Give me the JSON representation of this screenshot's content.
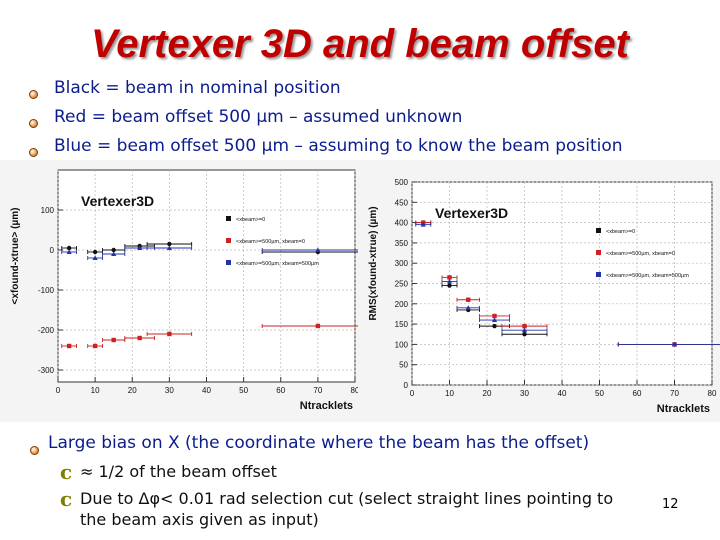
{
  "slide": {
    "title": "Vertexer 3D and beam offset",
    "bullets": [
      "Black = beam in nominal position",
      "Red = beam offset 500 µm – assumed unknown",
      "Blue = beam offset 500 µm – assuming to know the beam position"
    ],
    "conclusion": "Large bias on X (the coordinate where the beam has the offset)",
    "sub_bullets": [
      "≈ 1/2 of the beam offset",
      "Due to Δφ< 0.01 rad selection cut (select straight lines pointing to",
      "the beam axis given as input)"
    ],
    "page_number": "12",
    "colors": {
      "title": "#c00000",
      "bullet_text": "#0b1d8c",
      "black": "#111111",
      "red": "#cc2222",
      "blue": "#2233aa"
    }
  },
  "chart_data": [
    {
      "type": "scatter",
      "title": "Vertexer3D",
      "ylabel": "<xfound-xtrue> (µm)",
      "xlabel": "Ntracklets",
      "xlim": [
        0,
        80
      ],
      "ylim": [
        -330,
        200
      ],
      "x_ticks": [
        "0",
        "10",
        "20",
        "30",
        "40",
        "50",
        "60",
        "70",
        "80"
      ],
      "y_ticks": [
        "-300",
        "-200",
        "-100",
        "0",
        "100"
      ],
      "legend": [
        "<xbeam>=0",
        "<xbeam>=500µm, xbeam=0",
        "<xbeam>=500µm, xbeam=500µm"
      ],
      "series": [
        {
          "name": "<xbeam>=0",
          "color": "#111111",
          "x": [
            3,
            10,
            15,
            22,
            30,
            70
          ],
          "xerr": [
            2,
            2,
            3,
            4,
            6,
            15
          ],
          "y": [
            5,
            -5,
            0,
            10,
            15,
            -5
          ]
        },
        {
          "name": "<xbeam>=500µm, xbeam=0",
          "color": "#cc2222",
          "x": [
            3,
            10,
            15,
            22,
            30,
            70
          ],
          "xerr": [
            2,
            2,
            3,
            4,
            6,
            15
          ],
          "y": [
            -240,
            -240,
            -225,
            -220,
            -210,
            -190
          ]
        },
        {
          "name": "<xbeam>=500µm, xbeam=500µm",
          "color": "#2233aa",
          "x": [
            3,
            10,
            15,
            22,
            30,
            70
          ],
          "xerr": [
            2,
            2,
            3,
            4,
            6,
            15
          ],
          "y": [
            -5,
            -20,
            -10,
            5,
            5,
            0
          ]
        }
      ]
    },
    {
      "type": "scatter",
      "title": "Vertexer3D",
      "ylabel": "RMS(xfound-xtrue) (µm)",
      "xlabel": "Ntracklets",
      "xlim": [
        0,
        80
      ],
      "ylim": [
        0,
        500
      ],
      "x_ticks": [
        "0",
        "10",
        "20",
        "30",
        "40",
        "50",
        "60",
        "70",
        "80"
      ],
      "y_ticks": [
        "0",
        "50",
        "100",
        "150",
        "200",
        "250",
        "300",
        "350",
        "400",
        "450",
        "500"
      ],
      "legend": [
        "<xbeam>=0",
        "<xbeam>=500µm, xbeam=0",
        "<xbeam>=500µm, xbeam=500µm"
      ],
      "series": [
        {
          "name": "<xbeam>=0",
          "color": "#111111",
          "x": [
            3,
            10,
            15,
            22,
            30,
            70
          ],
          "xerr": [
            2,
            2,
            3,
            4,
            6,
            15
          ],
          "y": [
            400,
            245,
            185,
            145,
            125,
            100
          ]
        },
        {
          "name": "<xbeam>=500µm, xbeam=0",
          "color": "#cc2222",
          "x": [
            3,
            10,
            15,
            22,
            30,
            70
          ],
          "xerr": [
            2,
            2,
            3,
            4,
            6,
            15
          ],
          "y": [
            400,
            265,
            210,
            170,
            145,
            100
          ]
        },
        {
          "name": "<xbeam>=500µm, xbeam=500µm",
          "color": "#2233aa",
          "x": [
            3,
            10,
            15,
            22,
            30,
            70
          ],
          "xerr": [
            2,
            2,
            3,
            4,
            6,
            15
          ],
          "y": [
            395,
            255,
            190,
            160,
            135,
            100
          ]
        }
      ]
    }
  ]
}
